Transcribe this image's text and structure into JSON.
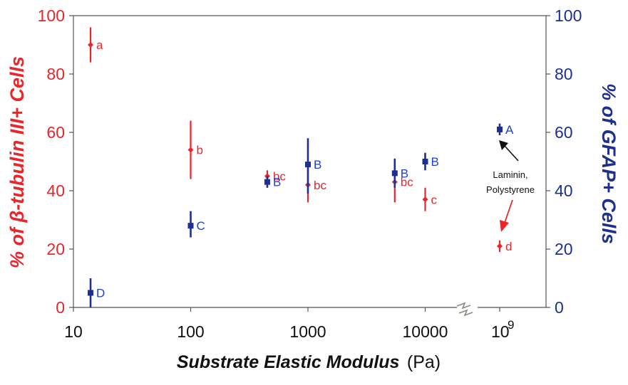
{
  "chart_data": {
    "type": "scatter",
    "xlabel": "Substrate Elastic Modulus",
    "xlabel_unit": "(Pa)",
    "ylabel_left": "% of β-tubulin III+ Cells",
    "ylabel_right": "% of GFAP+ Cells",
    "x_scale": "log",
    "xlim": [
      10,
      20000
    ],
    "x_ticks": [
      "10",
      "100",
      "1000",
      "10000"
    ],
    "x_break_tick": "10",
    "x_break_exponent": "9",
    "ylim": [
      0,
      100
    ],
    "y_ticks_left": [
      "0",
      "20",
      "40",
      "60",
      "80",
      "100"
    ],
    "y_ticks_right": [
      "0",
      "20",
      "40",
      "60",
      "80",
      "100"
    ],
    "grid": false,
    "colors": {
      "beta_tubulin": "#e8262b",
      "gfap": "#1f2f8f",
      "break_mark": "#8a8a80"
    },
    "series": [
      {
        "name": "% of β-tubulin III+ Cells",
        "axis": "left",
        "marker": "diamond",
        "points": [
          {
            "x": 14,
            "y": 90,
            "err_low": 84,
            "err_high": 96,
            "label": "a"
          },
          {
            "x": 100,
            "y": 54,
            "err_low": 44,
            "err_high": 64,
            "label": "b"
          },
          {
            "x": 450,
            "y": 45,
            "err_low": 43,
            "err_high": 47,
            "label": "bc"
          },
          {
            "x": 1000,
            "y": 42,
            "err_low": 36,
            "err_high": 48,
            "label": "bc"
          },
          {
            "x": 5500,
            "y": 43,
            "err_low": 36,
            "err_high": 51,
            "label": "bc"
          },
          {
            "x": 10000,
            "y": 37,
            "err_low": 33,
            "err_high": 41,
            "label": "c"
          },
          {
            "x": "10^9",
            "y": 21,
            "err_low": 19,
            "err_high": 23,
            "label": "d"
          }
        ]
      },
      {
        "name": "% of GFAP+ Cells",
        "axis": "right",
        "marker": "square",
        "points": [
          {
            "x": 14,
            "y": 5,
            "err_low": 0,
            "err_high": 10,
            "label": "D"
          },
          {
            "x": 100,
            "y": 28,
            "err_low": 24,
            "err_high": 33,
            "label": "C"
          },
          {
            "x": 450,
            "y": 43,
            "err_low": 41,
            "err_high": 45,
            "label": "B"
          },
          {
            "x": 1000,
            "y": 49,
            "err_low": 39,
            "err_high": 58,
            "label": "B"
          },
          {
            "x": 5500,
            "y": 46,
            "err_low": 41,
            "err_high": 51,
            "label": "B"
          },
          {
            "x": 10000,
            "y": 50,
            "err_low": 47,
            "err_high": 53,
            "label": "B"
          },
          {
            "x": "10^9",
            "y": 61,
            "err_low": 59,
            "err_high": 63,
            "label": "A"
          }
        ]
      }
    ],
    "annotation": {
      "line1": "Laminin,",
      "line2": "Polystyrene"
    }
  }
}
